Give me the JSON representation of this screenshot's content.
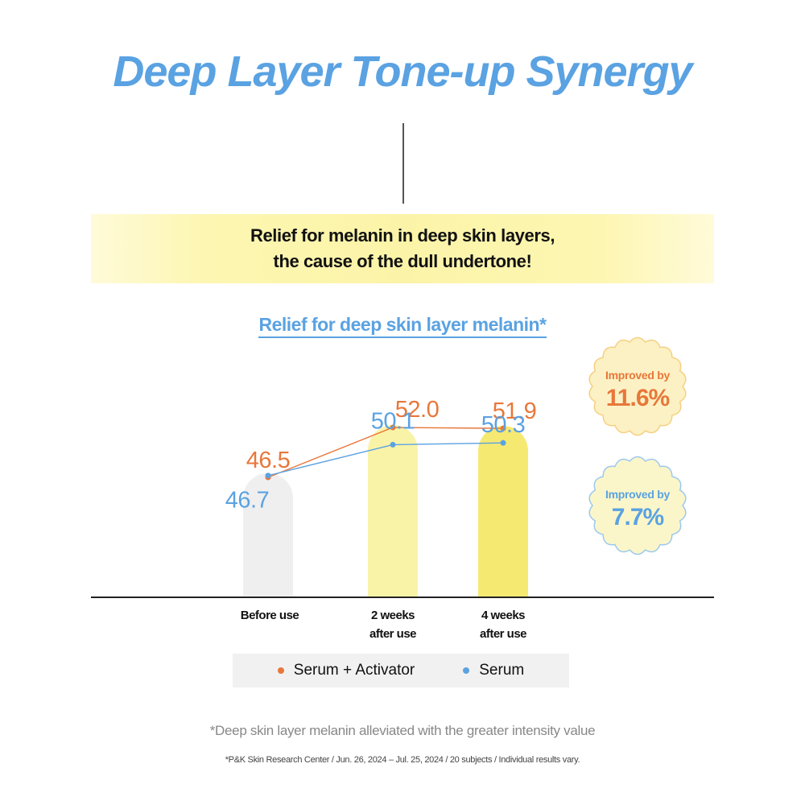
{
  "title": "Deep Layer Tone-up Synergy",
  "banner": {
    "line1": "Relief for melanin in deep skin layers,",
    "line2": "the cause of the dull undertone!"
  },
  "chart_data": {
    "type": "line",
    "title": "Relief for deep skin layer melanin*",
    "categories": [
      "Before use",
      "2 weeks after use",
      "4 weeks after use"
    ],
    "category_labels": [
      [
        "Before use"
      ],
      [
        "2 weeks",
        "after use"
      ],
      [
        "4 weeks",
        "after use"
      ]
    ],
    "series": [
      {
        "name": "Serum + Activator",
        "values": [
          46.5,
          52.0,
          51.9
        ],
        "labels": [
          "46.5",
          "52.0",
          "51.9"
        ],
        "color": "#e8773a"
      },
      {
        "name": "Serum",
        "values": [
          46.7,
          50.1,
          50.3
        ],
        "labels": [
          "46.7",
          "50.1",
          "50.3"
        ],
        "color": "#5aa2e2"
      }
    ],
    "badges": [
      {
        "label": "Improved by",
        "value": "11.6%",
        "series": "Serum + Activator"
      },
      {
        "label": "Improved by",
        "value": "7.7%",
        "series": "Serum"
      }
    ],
    "bar_colors": [
      "#efefef",
      "#f9f3a8",
      "#f5e971"
    ],
    "xlabel": "",
    "ylabel": ""
  },
  "footnote": "*Deep skin layer melanin alleviated with the greater intensity value",
  "source": "*P&K Skin Research Center / Jun. 26, 2024 – Jul. 25, 2024 / 20 subjects / Individual results vary.",
  "colors": {
    "title": "#5aa2e2",
    "subtitle": "#5aa2e2",
    "orange": "#e8773a",
    "blue": "#5aa2e2",
    "badge_orange_fill": "#fcf1c4",
    "badge_orange_stroke": "#f5d080",
    "badge_blue_fill": "#fbf6c9",
    "badge_blue_stroke": "#9cc8ee"
  }
}
